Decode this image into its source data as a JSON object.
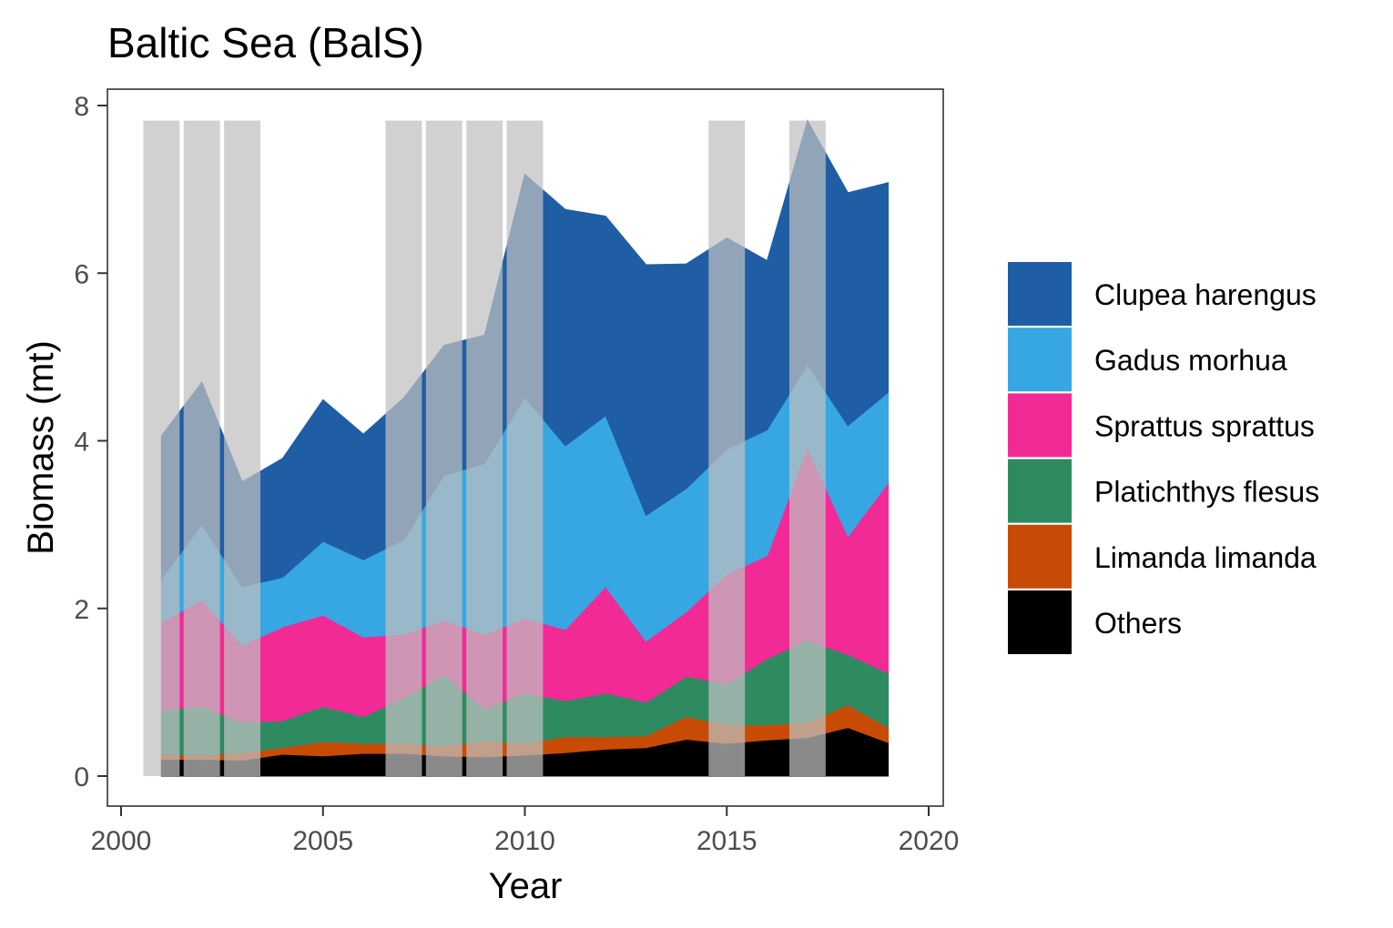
{
  "chart_data": {
    "type": "area",
    "title": "Baltic Sea (BalS)",
    "xlabel": "Year",
    "ylabel": "Biomass (mt)",
    "xlim": [
      2000,
      2020
    ],
    "ylim": [
      0,
      8
    ],
    "x_ticks": [
      2000,
      2005,
      2010,
      2015,
      2020
    ],
    "y_ticks": [
      0,
      2,
      4,
      6,
      8
    ],
    "grid": false,
    "legend_position": "right",
    "stacked": true,
    "shaded_years": [
      2001,
      2002,
      2003,
      2007,
      2008,
      2009,
      2010,
      2015,
      2017
    ],
    "shaded_band_top": 7.82,
    "shade_color": "#bfbfbf",
    "x": [
      2001,
      2002,
      2003,
      2004,
      2005,
      2006,
      2007,
      2008,
      2009,
      2010,
      2011,
      2012,
      2013,
      2014,
      2015,
      2016,
      2017,
      2018,
      2019
    ],
    "series": [
      {
        "name": "Clupea harengus",
        "color": "#1f5ea5",
        "values": [
          1.71,
          1.7,
          1.25,
          1.42,
          1.69,
          1.5,
          1.69,
          1.55,
          1.53,
          2.66,
          2.82,
          2.38,
          2.99,
          2.68,
          2.52,
          2.02,
          2.91,
          2.78,
          2.5
        ]
      },
      {
        "name": "Gadus morhua",
        "color": "#36a7e3",
        "values": [
          0.52,
          0.9,
          0.7,
          0.59,
          0.88,
          0.92,
          1.13,
          1.73,
          2.04,
          2.64,
          2.19,
          2.04,
          1.5,
          1.47,
          1.49,
          1.5,
          0.99,
          1.32,
          1.08
        ]
      },
      {
        "name": "Sprattus sprattus",
        "color": "#f22a96",
        "values": [
          1.04,
          1.27,
          0.92,
          1.12,
          1.09,
          0.95,
          0.76,
          0.65,
          0.89,
          0.89,
          0.85,
          1.27,
          0.73,
          0.77,
          1.31,
          1.23,
          2.3,
          1.41,
          2.27
        ]
      },
      {
        "name": "Platichthys flesus",
        "color": "#2e8b60",
        "values": [
          0.53,
          0.58,
          0.36,
          0.32,
          0.42,
          0.32,
          0.54,
          0.85,
          0.38,
          0.6,
          0.43,
          0.52,
          0.4,
          0.48,
          0.49,
          0.79,
          0.98,
          0.6,
          0.65
        ]
      },
      {
        "name": "Limanda limanda",
        "color": "#c84b05",
        "values": [
          0.06,
          0.05,
          0.09,
          0.08,
          0.17,
          0.12,
          0.12,
          0.12,
          0.19,
          0.14,
          0.19,
          0.15,
          0.14,
          0.27,
          0.22,
          0.18,
          0.18,
          0.27,
          0.18
        ]
      },
      {
        "name": "Others",
        "color": "#000000",
        "values": [
          0.2,
          0.2,
          0.19,
          0.26,
          0.24,
          0.27,
          0.27,
          0.24,
          0.23,
          0.25,
          0.28,
          0.32,
          0.34,
          0.44,
          0.39,
          0.43,
          0.46,
          0.58,
          0.4
        ]
      }
    ]
  }
}
